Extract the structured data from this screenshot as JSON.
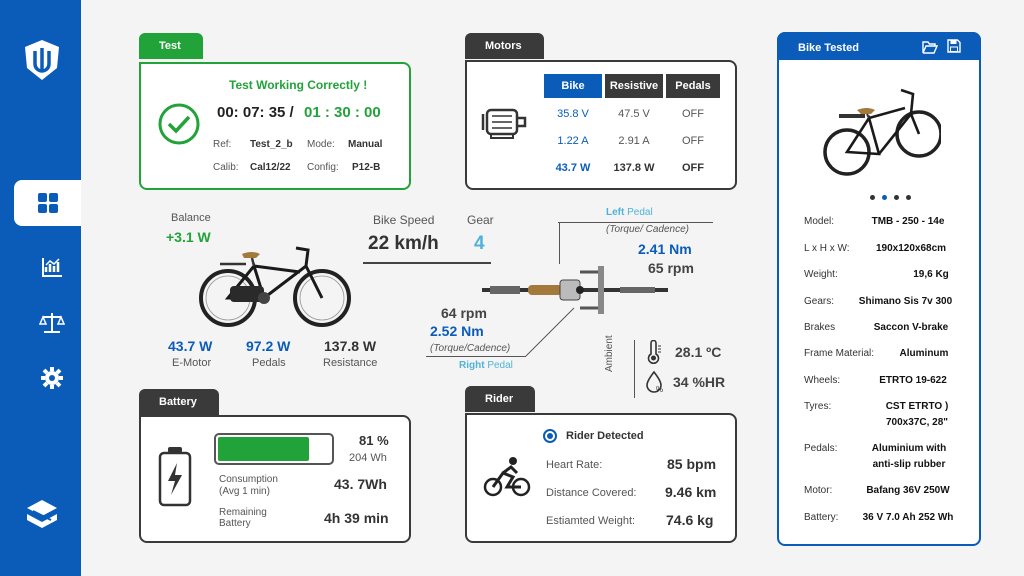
{
  "sidebar": {
    "items": [
      {
        "name": "logo-icon"
      },
      {
        "name": "dashboard-icon",
        "active": true
      },
      {
        "name": "charts-icon"
      },
      {
        "name": "balance-scale-icon"
      },
      {
        "name": "gear-icon"
      },
      {
        "name": "brand-icon"
      }
    ]
  },
  "test": {
    "tab": "Test",
    "status": "Test Working Correctly !",
    "elapsed": "00: 07: 35 /",
    "total": "01 : 30 : 00",
    "ref_label": "Ref:",
    "ref_value": "Test_2_b",
    "mode_label": "Mode:",
    "mode_value": "Manual",
    "calib_label": "Calib:",
    "calib_value": "Cal12/22",
    "config_label": "Config:",
    "config_value": "P12-B"
  },
  "motors": {
    "tab": "Motors",
    "headers": [
      "Bike",
      "Resistive",
      "Pedals"
    ],
    "rows": [
      [
        "35.8 V",
        "47.5 V",
        "OFF"
      ],
      [
        "1.22 A",
        "2.91 A",
        "OFF"
      ],
      [
        "43.7 W",
        "137.8 W",
        "OFF"
      ]
    ]
  },
  "center": {
    "balance_label": "Balance",
    "balance_value": "+3.1 W",
    "speed_label": "Bike Speed",
    "speed_value": "22 km/h",
    "gear_label": "Gear",
    "gear_value": "4",
    "emotor_value": "43.7 W",
    "emotor_label": "E-Motor",
    "pedals_value": "97.2 W",
    "pedals_label": "Pedals",
    "resistance_value": "137.8 W",
    "resistance_label": "Resistance",
    "left_pedal_word": "Left",
    "left_pedal_rest": " Pedal",
    "left_torque_label": "(Torque/ Cadence)",
    "left_torque": "2.41 Nm",
    "left_cadence": "65 rpm",
    "right_cadence": "64 rpm",
    "right_torque": "2.52 Nm",
    "right_torque_label": "(Torque/Cadence)",
    "right_pedal_word": "Right",
    "right_pedal_rest": " Pedal",
    "ambient_label": "Ambient",
    "temperature": "28.1 ºC",
    "humidity": "34 %HR"
  },
  "battery": {
    "tab": "Battery",
    "level_percent": 81,
    "percent_text": "81 %",
    "wh_text": "204 Wh",
    "consumption_label_1": "Consumption",
    "consumption_label_2": "(Avg 1 min)",
    "consumption_value": "43. 7Wh",
    "remaining_label_1": "Remaining",
    "remaining_label_2": "Battery",
    "remaining_value": "4h 39 min"
  },
  "rider": {
    "tab": "Rider",
    "detected": "Rider Detected",
    "hr_label": "Heart Rate:",
    "hr_value": "85 bpm",
    "dist_label": "Distance Covered:",
    "dist_value": "9.46 km",
    "weight_label": "Estiamted Weight:",
    "weight_value": "74.6 kg"
  },
  "bike_tested": {
    "tab": "Bike Tested",
    "specs": [
      {
        "label": "Model:",
        "value": "TMB  - 250 - 14e"
      },
      {
        "label": "L x H x W:",
        "value": "190x120x68cm"
      },
      {
        "label": "Weight:",
        "value": "19,6 Kg"
      },
      {
        "label": "Gears:",
        "value": "Shimano Sis  7v 300"
      },
      {
        "label": "Brakes",
        "value": "Saccon V-brake"
      },
      {
        "label": "Frame Material:",
        "value": "Aluminum"
      },
      {
        "label": "Wheels:",
        "value": "ETRTO 19-622"
      },
      {
        "label": "Tyres:",
        "value_1": "CST ETRTO )",
        "value_2": "700x37C, 28\""
      },
      {
        "label": "Pedals:",
        "value_1": "Aluminium with",
        "value_2": "anti-slip rubber"
      },
      {
        "label": "Motor:",
        "value": "Bafang 36V 250W"
      },
      {
        "label": "Battery:",
        "value": "36 V 7.0 Ah 252 Wh"
      }
    ]
  },
  "colors": {
    "primary": "#0a5cb8",
    "success": "#22a33a",
    "dark": "#3a3a3a",
    "accent": "#4fb3d9"
  }
}
